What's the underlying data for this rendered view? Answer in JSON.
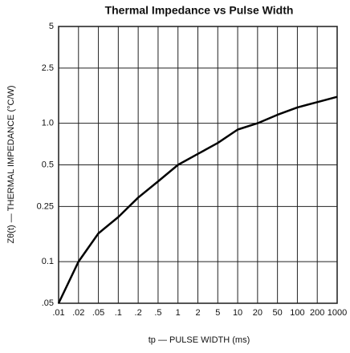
{
  "chart_data": {
    "type": "line",
    "title": "Thermal Impedance vs Pulse Width",
    "x_label": "tp — PULSE WIDTH (ms)",
    "y_label": "Zθ(t) — THERMAL IMPEDANCE (°C/W)",
    "categories": [
      ".01",
      ".02",
      ".05",
      ".1",
      ".2",
      ".5",
      "1",
      "2",
      "5",
      "10",
      "20",
      "50",
      "100",
      "200",
      "1000"
    ],
    "values": [
      0.05,
      0.1,
      0.16,
      0.21,
      0.29,
      0.38,
      0.5,
      0.6,
      0.72,
      0.9,
      1.0,
      1.15,
      1.3,
      1.42,
      1.55
    ],
    "color": "#000000",
    "ylim": [
      0.05,
      5
    ],
    "yticks": [
      5,
      2.5,
      {
        "value": 1,
        "label": "1.0"
      },
      0.5,
      0.25,
      0.1,
      {
        "value": 0.05,
        "label": ".05"
      }
    ],
    "log_y": true,
    "grid": true
  }
}
